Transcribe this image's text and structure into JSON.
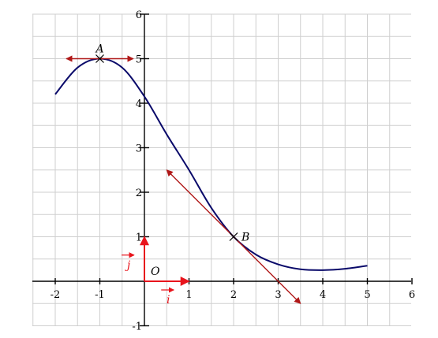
{
  "chart_data": {
    "type": "line",
    "title": "",
    "xlabel": "",
    "ylabel": "",
    "xlim": [
      -2.5,
      6
    ],
    "ylim": [
      -1,
      6
    ],
    "grid": true,
    "minor_grid_step": 0.5,
    "x_ticks": [
      "-2",
      "-1",
      "1",
      "2",
      "3",
      "4",
      "5",
      "6"
    ],
    "y_ticks": [
      "-1",
      "1",
      "2",
      "3",
      "4",
      "5",
      "6"
    ],
    "origin_label": "O",
    "series": [
      {
        "color": "#0a0a6a",
        "x": [
          -2,
          -1.5,
          -1,
          -0.5,
          0,
          0.5,
          1,
          1.5,
          2,
          2.5,
          3,
          3.5,
          4,
          4.5,
          5
        ],
        "y": [
          4.2,
          4.8,
          5.0,
          4.8,
          4.15,
          3.3,
          2.5,
          1.65,
          1.0,
          0.6,
          0.38,
          0.27,
          0.25,
          0.28,
          0.35
        ]
      }
    ],
    "points": [
      {
        "label": "A",
        "x": -1,
        "y": 5
      },
      {
        "label": "B",
        "x": 2,
        "y": 1
      }
    ],
    "unit_vectors": [
      {
        "label": "i",
        "color": "#e8141c",
        "from": [
          0,
          0
        ],
        "to": [
          1,
          0
        ]
      },
      {
        "label": "j",
        "color": "#e8141c",
        "from": [
          0,
          0
        ],
        "to": [
          0,
          1
        ]
      }
    ],
    "tangents": [
      {
        "color": "#b01818",
        "from": [
          -1.75,
          5
        ],
        "to": [
          -0.25,
          5
        ]
      },
      {
        "color": "#b01818",
        "from": [
          0.5,
          2.5
        ],
        "to": [
          3.5,
          -0.5
        ]
      }
    ]
  }
}
